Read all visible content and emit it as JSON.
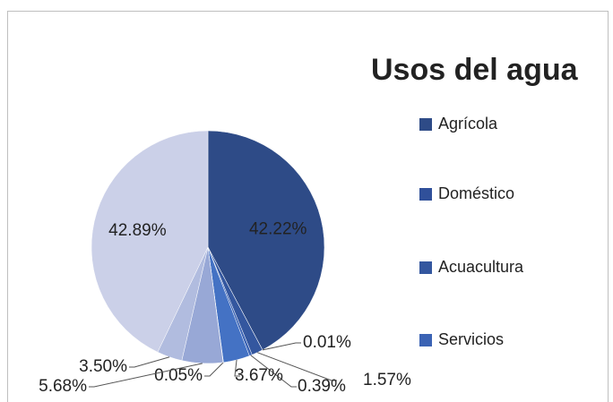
{
  "chart_data": {
    "type": "pie",
    "title": "Usos del agua",
    "categories": [
      "Agrícola",
      "Doméstico",
      "Acuacultura",
      "Servicios",
      null,
      null,
      null,
      null,
      null
    ],
    "values": [
      42.22,
      0.01,
      1.57,
      0.39,
      3.67,
      0.05,
      5.68,
      3.5,
      42.89
    ],
    "value_labels": [
      "42.22%",
      "0.01%",
      "1.57%",
      "0.39%",
      "3.67%",
      "0.05%",
      "5.68%",
      "3.50%",
      "42.89%"
    ],
    "colors": [
      "#2e4b87",
      "#30509a",
      "#34579f",
      "#3b63b4",
      "#4472c4",
      "#6d8bcc",
      "#98a8d6",
      "#b1bcdf",
      "#cbd0e8"
    ]
  }
}
